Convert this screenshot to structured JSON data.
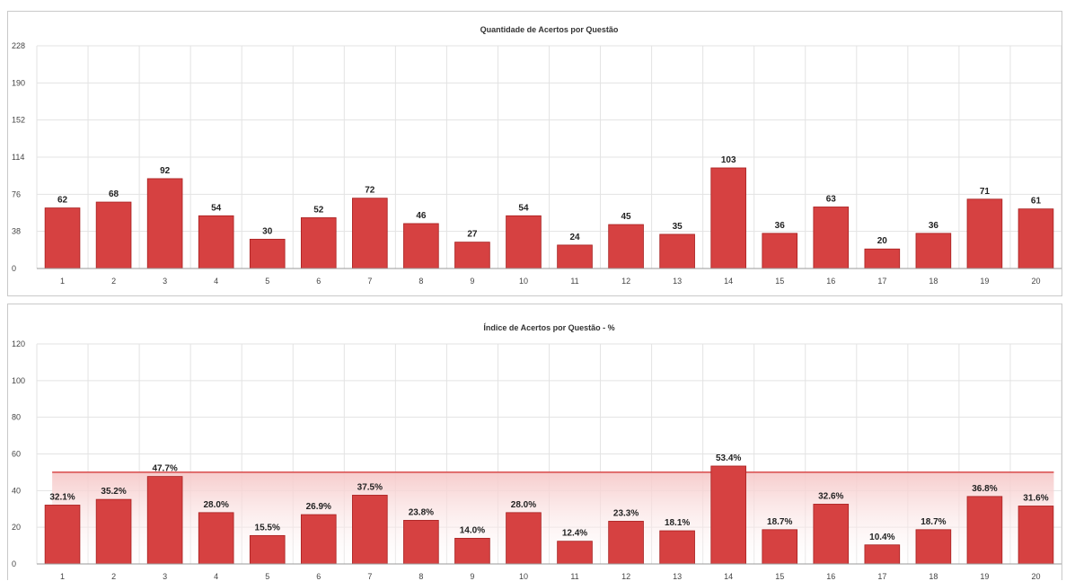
{
  "charts": [
    {
      "id": "top",
      "colors": {
        "bar": "#d64141",
        "bar_edge": "#a82020"
      },
      "chart_data": {
        "type": "bar",
        "title": "Quantidade de Acertos por Questão",
        "categories": [
          "1",
          "2",
          "3",
          "4",
          "5",
          "6",
          "7",
          "8",
          "9",
          "10",
          "11",
          "12",
          "13",
          "14",
          "15",
          "16",
          "17",
          "18",
          "19",
          "20"
        ],
        "values": [
          62,
          68,
          92,
          54,
          30,
          52,
          72,
          46,
          27,
          54,
          24,
          45,
          35,
          103,
          36,
          63,
          20,
          36,
          71,
          61
        ],
        "data_labels": [
          "62",
          "68",
          "92",
          "54",
          "30",
          "52",
          "72",
          "46",
          "27",
          "54",
          "24",
          "45",
          "35",
          "103",
          "36",
          "63",
          "20",
          "36",
          "71",
          "61"
        ],
        "y_ticks": [
          0,
          38,
          76,
          114,
          152,
          190,
          228
        ],
        "y_tick_labels": [
          "0",
          "38",
          "76",
          "114",
          "152",
          "190",
          "228"
        ],
        "ylim": [
          0,
          228
        ],
        "grid": true,
        "xlabel": "",
        "ylabel": ""
      }
    },
    {
      "id": "bottom",
      "colors": {
        "bar": "#d64141",
        "bar_edge": "#a82020",
        "band_line": "#d84a4a",
        "band_fill": "#f6c9c9"
      },
      "chart_data": {
        "type": "bar",
        "title": "Índice de Acertos por Questão - %",
        "categories": [
          "1",
          "2",
          "3",
          "4",
          "5",
          "6",
          "7",
          "8",
          "9",
          "10",
          "11",
          "12",
          "13",
          "14",
          "15",
          "16",
          "17",
          "18",
          "19",
          "20"
        ],
        "values": [
          32.1,
          35.2,
          47.7,
          28.0,
          15.5,
          26.9,
          37.5,
          23.8,
          14.0,
          28.0,
          12.4,
          23.3,
          18.1,
          53.4,
          18.7,
          32.6,
          10.4,
          18.7,
          36.8,
          31.6
        ],
        "data_labels": [
          "32.1%",
          "35.2%",
          "47.7%",
          "28.0%",
          "15.5%",
          "26.9%",
          "37.5%",
          "23.8%",
          "14.0%",
          "28.0%",
          "12.4%",
          "23.3%",
          "18.1%",
          "53.4%",
          "18.7%",
          "32.6%",
          "10.4%",
          "18.7%",
          "36.8%",
          "31.6%"
        ],
        "reference_line": 50,
        "y_ticks": [
          0,
          20,
          40,
          60,
          80,
          100,
          120
        ],
        "y_tick_labels": [
          "0",
          "20",
          "40",
          "60",
          "80",
          "100",
          "120"
        ],
        "ylim": [
          0,
          120
        ],
        "grid": true,
        "xlabel": "",
        "ylabel": ""
      }
    }
  ]
}
